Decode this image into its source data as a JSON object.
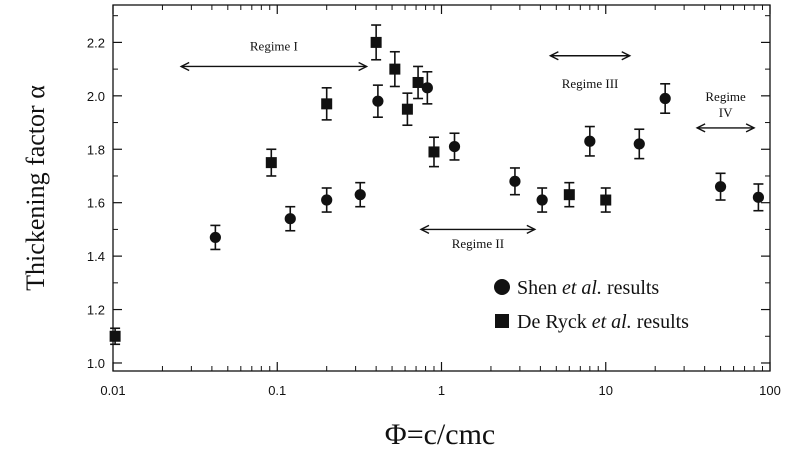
{
  "chart_data": {
    "type": "scatter",
    "xscale": "log",
    "xlim": [
      0.01,
      100
    ],
    "ylim": [
      0.97,
      2.34
    ],
    "xlabel": "Φ=c/cmc",
    "ylabel": "Thickening factor α",
    "x_ticks": [
      {
        "value": 0.01,
        "label": "0.01"
      },
      {
        "value": 0.1,
        "label": "0.1"
      },
      {
        "value": 1,
        "label": "1"
      },
      {
        "value": 10,
        "label": "10"
      },
      {
        "value": 100,
        "label": "100"
      }
    ],
    "y_ticks": [
      {
        "value": 1.0,
        "label": "1.0"
      },
      {
        "value": 1.2,
        "label": "1.2"
      },
      {
        "value": 1.4,
        "label": "1.4"
      },
      {
        "value": 1.6,
        "label": "1.6"
      },
      {
        "value": 1.8,
        "label": "1.8"
      },
      {
        "value": 2.0,
        "label": "2.0"
      },
      {
        "value": 2.2,
        "label": "2.2"
      }
    ],
    "grid": false,
    "legend_position": "bottom-right",
    "series": [
      {
        "name": "Shen et al. results",
        "name_parts": [
          "Shen ",
          "et al.",
          " results"
        ],
        "marker": "circle",
        "points": [
          {
            "x": 0.042,
            "y": 1.47,
            "err": 0.045
          },
          {
            "x": 0.12,
            "y": 1.54,
            "err": 0.045
          },
          {
            "x": 0.2,
            "y": 1.61,
            "err": 0.045
          },
          {
            "x": 0.32,
            "y": 1.63,
            "err": 0.045
          },
          {
            "x": 0.41,
            "y": 1.98,
            "err": 0.06
          },
          {
            "x": 0.82,
            "y": 2.03,
            "err": 0.06
          },
          {
            "x": 1.2,
            "y": 1.81,
            "err": 0.05
          },
          {
            "x": 2.8,
            "y": 1.68,
            "err": 0.05
          },
          {
            "x": 4.1,
            "y": 1.61,
            "err": 0.045
          },
          {
            "x": 8.0,
            "y": 1.83,
            "err": 0.055
          },
          {
            "x": 16.0,
            "y": 1.82,
            "err": 0.055
          },
          {
            "x": 23.0,
            "y": 1.99,
            "err": 0.055
          },
          {
            "x": 50.0,
            "y": 1.66,
            "err": 0.05
          },
          {
            "x": 85.0,
            "y": 1.62,
            "err": 0.05
          }
        ]
      },
      {
        "name": "De Ryck et al. results",
        "name_parts": [
          "De Ryck ",
          "et al.",
          " results"
        ],
        "marker": "square",
        "points": [
          {
            "x": 0.0103,
            "y": 1.1,
            "err": 0.03
          },
          {
            "x": 0.092,
            "y": 1.75,
            "err": 0.05
          },
          {
            "x": 0.2,
            "y": 1.97,
            "err": 0.06
          },
          {
            "x": 0.4,
            "y": 2.2,
            "err": 0.065
          },
          {
            "x": 0.52,
            "y": 2.1,
            "err": 0.065
          },
          {
            "x": 0.62,
            "y": 1.95,
            "err": 0.06
          },
          {
            "x": 0.72,
            "y": 2.05,
            "err": 0.06
          },
          {
            "x": 0.9,
            "y": 1.79,
            "err": 0.055
          },
          {
            "x": 6.0,
            "y": 1.63,
            "err": 0.045
          },
          {
            "x": 10.0,
            "y": 1.61,
            "err": 0.045
          }
        ]
      }
    ],
    "annotations": [
      {
        "label": "Regime I",
        "x_from": 0.026,
        "x_to": 0.35,
        "y_arrow": 2.11,
        "lines": [
          "Regime I"
        ],
        "y_text": 2.17
      },
      {
        "label": "Regime II",
        "x_from": 0.75,
        "x_to": 3.7,
        "y_arrow": 1.5,
        "lines": [
          "Regime II"
        ],
        "y_text": 1.43
      },
      {
        "label": "Regime III",
        "x_from": 4.6,
        "x_to": 14.0,
        "y_arrow": 2.15,
        "lines": [
          "Regime III"
        ],
        "y_text": 2.03
      },
      {
        "label": "Regime IV",
        "x_from": 36.0,
        "x_to": 80.0,
        "y_arrow": 1.88,
        "lines": [
          "Regime",
          "IV"
        ],
        "y_text": 1.98
      }
    ]
  }
}
